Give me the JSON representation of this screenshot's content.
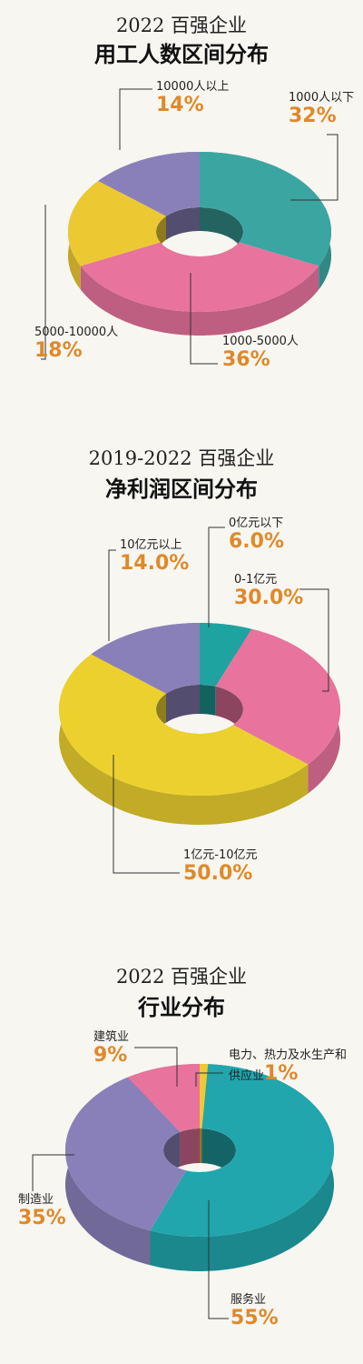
{
  "chart_data": [
    {
      "type": "donut",
      "subtitle": "2022 百强企业",
      "title": "用工人数区间分布",
      "categories": [
        "1000人以下",
        "1000-5000人",
        "5000-10000人",
        "10000人以上"
      ],
      "values": [
        32,
        36,
        18,
        14
      ],
      "value_labels": [
        "32%",
        "36%",
        "18%",
        "14%"
      ],
      "colors": [
        "#3ba6a1",
        "#e8739c",
        "#ecc932",
        "#8a80b9"
      ]
    },
    {
      "type": "donut",
      "subtitle": "2019-2022 百强企业",
      "title": "净利润区间分布",
      "categories": [
        "0亿元以下",
        "0-1亿元",
        "1亿元-10亿元",
        "10亿元以上"
      ],
      "values": [
        6.0,
        30.0,
        50.0,
        14.0
      ],
      "value_labels": [
        "6.0%",
        "30.0%",
        "50.0%",
        "14.0%"
      ],
      "colors": [
        "#1fa3a0",
        "#e8739c",
        "#ecd12e",
        "#8a80b9"
      ]
    },
    {
      "type": "donut",
      "subtitle": "2022 百强企业",
      "title": "行业分布",
      "categories": [
        "电力、热力及水生产和供应业",
        "服务业",
        "制造业",
        "建筑业"
      ],
      "values": [
        1,
        55,
        35,
        9
      ],
      "value_labels": [
        "1%",
        "55%",
        "35%",
        "9%"
      ],
      "colors": [
        "#f0c832",
        "#20a6ac",
        "#8a80b9",
        "#e8739c"
      ]
    }
  ]
}
